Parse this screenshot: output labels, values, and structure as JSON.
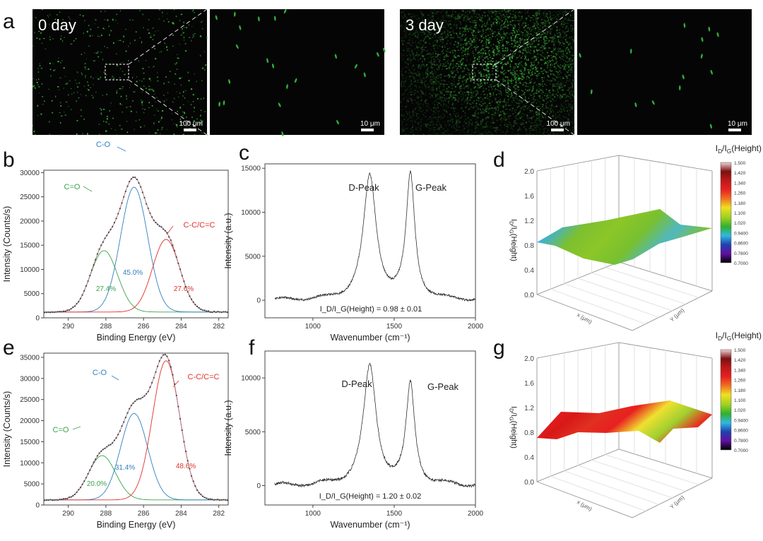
{
  "panel_labels": {
    "a": "a",
    "b": "b",
    "c": "c",
    "d": "d",
    "e": "e",
    "f": "f",
    "g": "g"
  },
  "micrographs": [
    {
      "label": "0 day",
      "scale": "100 μm",
      "density": "low"
    },
    {
      "label": "",
      "scale": "10 μm",
      "density": "zoom-low"
    },
    {
      "label": "3 day",
      "scale": "100 μm",
      "density": "high"
    },
    {
      "label": "",
      "scale": "10 μm",
      "density": "zoom-high"
    }
  ],
  "chart_data": [
    {
      "panel": "b",
      "type": "line",
      "xlabel": "Binding Energy (eV)",
      "ylabel": "Intensity (Counts/s)",
      "xlim": [
        291.3,
        281.5
      ],
      "ylim": [
        0,
        30500
      ],
      "xticks": [
        290,
        288,
        286,
        284,
        282
      ],
      "yticks": [
        0,
        5000,
        10000,
        15000,
        20000,
        25000,
        30000
      ],
      "baseline": 1200,
      "peaks": [
        {
          "name": "C=O",
          "center": 288.1,
          "height": 12700,
          "area_pct": "27.4%",
          "color": "#3aa34a"
        },
        {
          "name": "C-O",
          "center": 286.5,
          "height": 25800,
          "area_pct": "45.0%",
          "color": "#2f7fc1"
        },
        {
          "name": "C-C/C=C",
          "center": 284.8,
          "height": 15000,
          "area_pct": "27.6%",
          "color": "#e0302a"
        }
      ]
    },
    {
      "panel": "c",
      "type": "line",
      "xlabel": "Wavenumber (cm⁻¹)",
      "ylabel": "Intensity (a.u.)",
      "xlim": [
        705,
        2000
      ],
      "ylim": [
        -2000,
        15500
      ],
      "xticks": [
        1000,
        1500,
        2000
      ],
      "yticks": [
        0,
        5000,
        10000,
        15000
      ],
      "peaks": [
        {
          "name": "D-Peak",
          "center": 1350,
          "height": 14000
        },
        {
          "name": "G-Peak",
          "center": 1600,
          "height": 14000
        }
      ],
      "annotation": "I_D/I_G(Height) = 0.98 ± 0.01"
    },
    {
      "panel": "d",
      "type": "heatmap",
      "zlabel": "I_D/I_G(Height)",
      "xlabel": "x (μm)",
      "ylabel": "Y (μm)",
      "zticks": [
        "0.0",
        "0.4",
        "0.8",
        "1.2",
        "1.6",
        "2.0"
      ],
      "colorbar_title": "I_D/I_G(Height)",
      "colorbar_ticks": [
        "1.500",
        "1.420",
        "1.340",
        "1.260",
        "1.180",
        "1.100",
        "1.020",
        "0.9400",
        "0.8600",
        "0.7800",
        "0.7000"
      ],
      "mean_value": 0.98
    },
    {
      "panel": "e",
      "type": "line",
      "xlabel": "Binding Energy (eV)",
      "ylabel": "Intensity (Counts/s)",
      "xlim": [
        291.3,
        281.5
      ],
      "ylim": [
        0,
        36000
      ],
      "xticks": [
        290,
        288,
        286,
        284,
        282
      ],
      "yticks": [
        0,
        5000,
        10000,
        15000,
        20000,
        25000,
        30000,
        35000
      ],
      "baseline": 1200,
      "peaks": [
        {
          "name": "C=O",
          "center": 288.2,
          "height": 10500,
          "area_pct": "20.0%",
          "color": "#3aa34a"
        },
        {
          "name": "C-O",
          "center": 286.5,
          "height": 20500,
          "area_pct": "31.4%",
          "color": "#2f7fc1"
        },
        {
          "name": "C-C/C=C",
          "center": 284.8,
          "height": 33000,
          "area_pct": "48.6%",
          "color": "#e0302a"
        }
      ]
    },
    {
      "panel": "f",
      "type": "line",
      "xlabel": "Wavenumber (cm⁻¹)",
      "ylabel": "Intensity (a.u.)",
      "xlim": [
        705,
        2000
      ],
      "ylim": [
        -1800,
        12500
      ],
      "xticks": [
        1000,
        1500,
        2000
      ],
      "yticks": [
        0,
        5000,
        10000
      ],
      "peaks": [
        {
          "name": "D-Peak",
          "center": 1350,
          "height": 11000
        },
        {
          "name": "G-Peak",
          "center": 1600,
          "height": 9200
        }
      ],
      "annotation": "I_D/I_G(Height) = 1.20 ± 0.02"
    },
    {
      "panel": "g",
      "type": "heatmap",
      "zlabel": "I_D/I_G(Height)",
      "xlabel": "x (μm)",
      "ylabel": "Y (μm)",
      "zticks": [
        "0.0",
        "0.4",
        "0.8",
        "1.2",
        "1.6",
        "2.0"
      ],
      "colorbar_title": "I_D/I_G(Height)",
      "colorbar_ticks": [
        "1.500",
        "1.420",
        "1.340",
        "1.260",
        "1.180",
        "1.100",
        "1.020",
        "0.9400",
        "0.8600",
        "0.7800",
        "0.7000"
      ],
      "mean_value": 1.2
    }
  ]
}
